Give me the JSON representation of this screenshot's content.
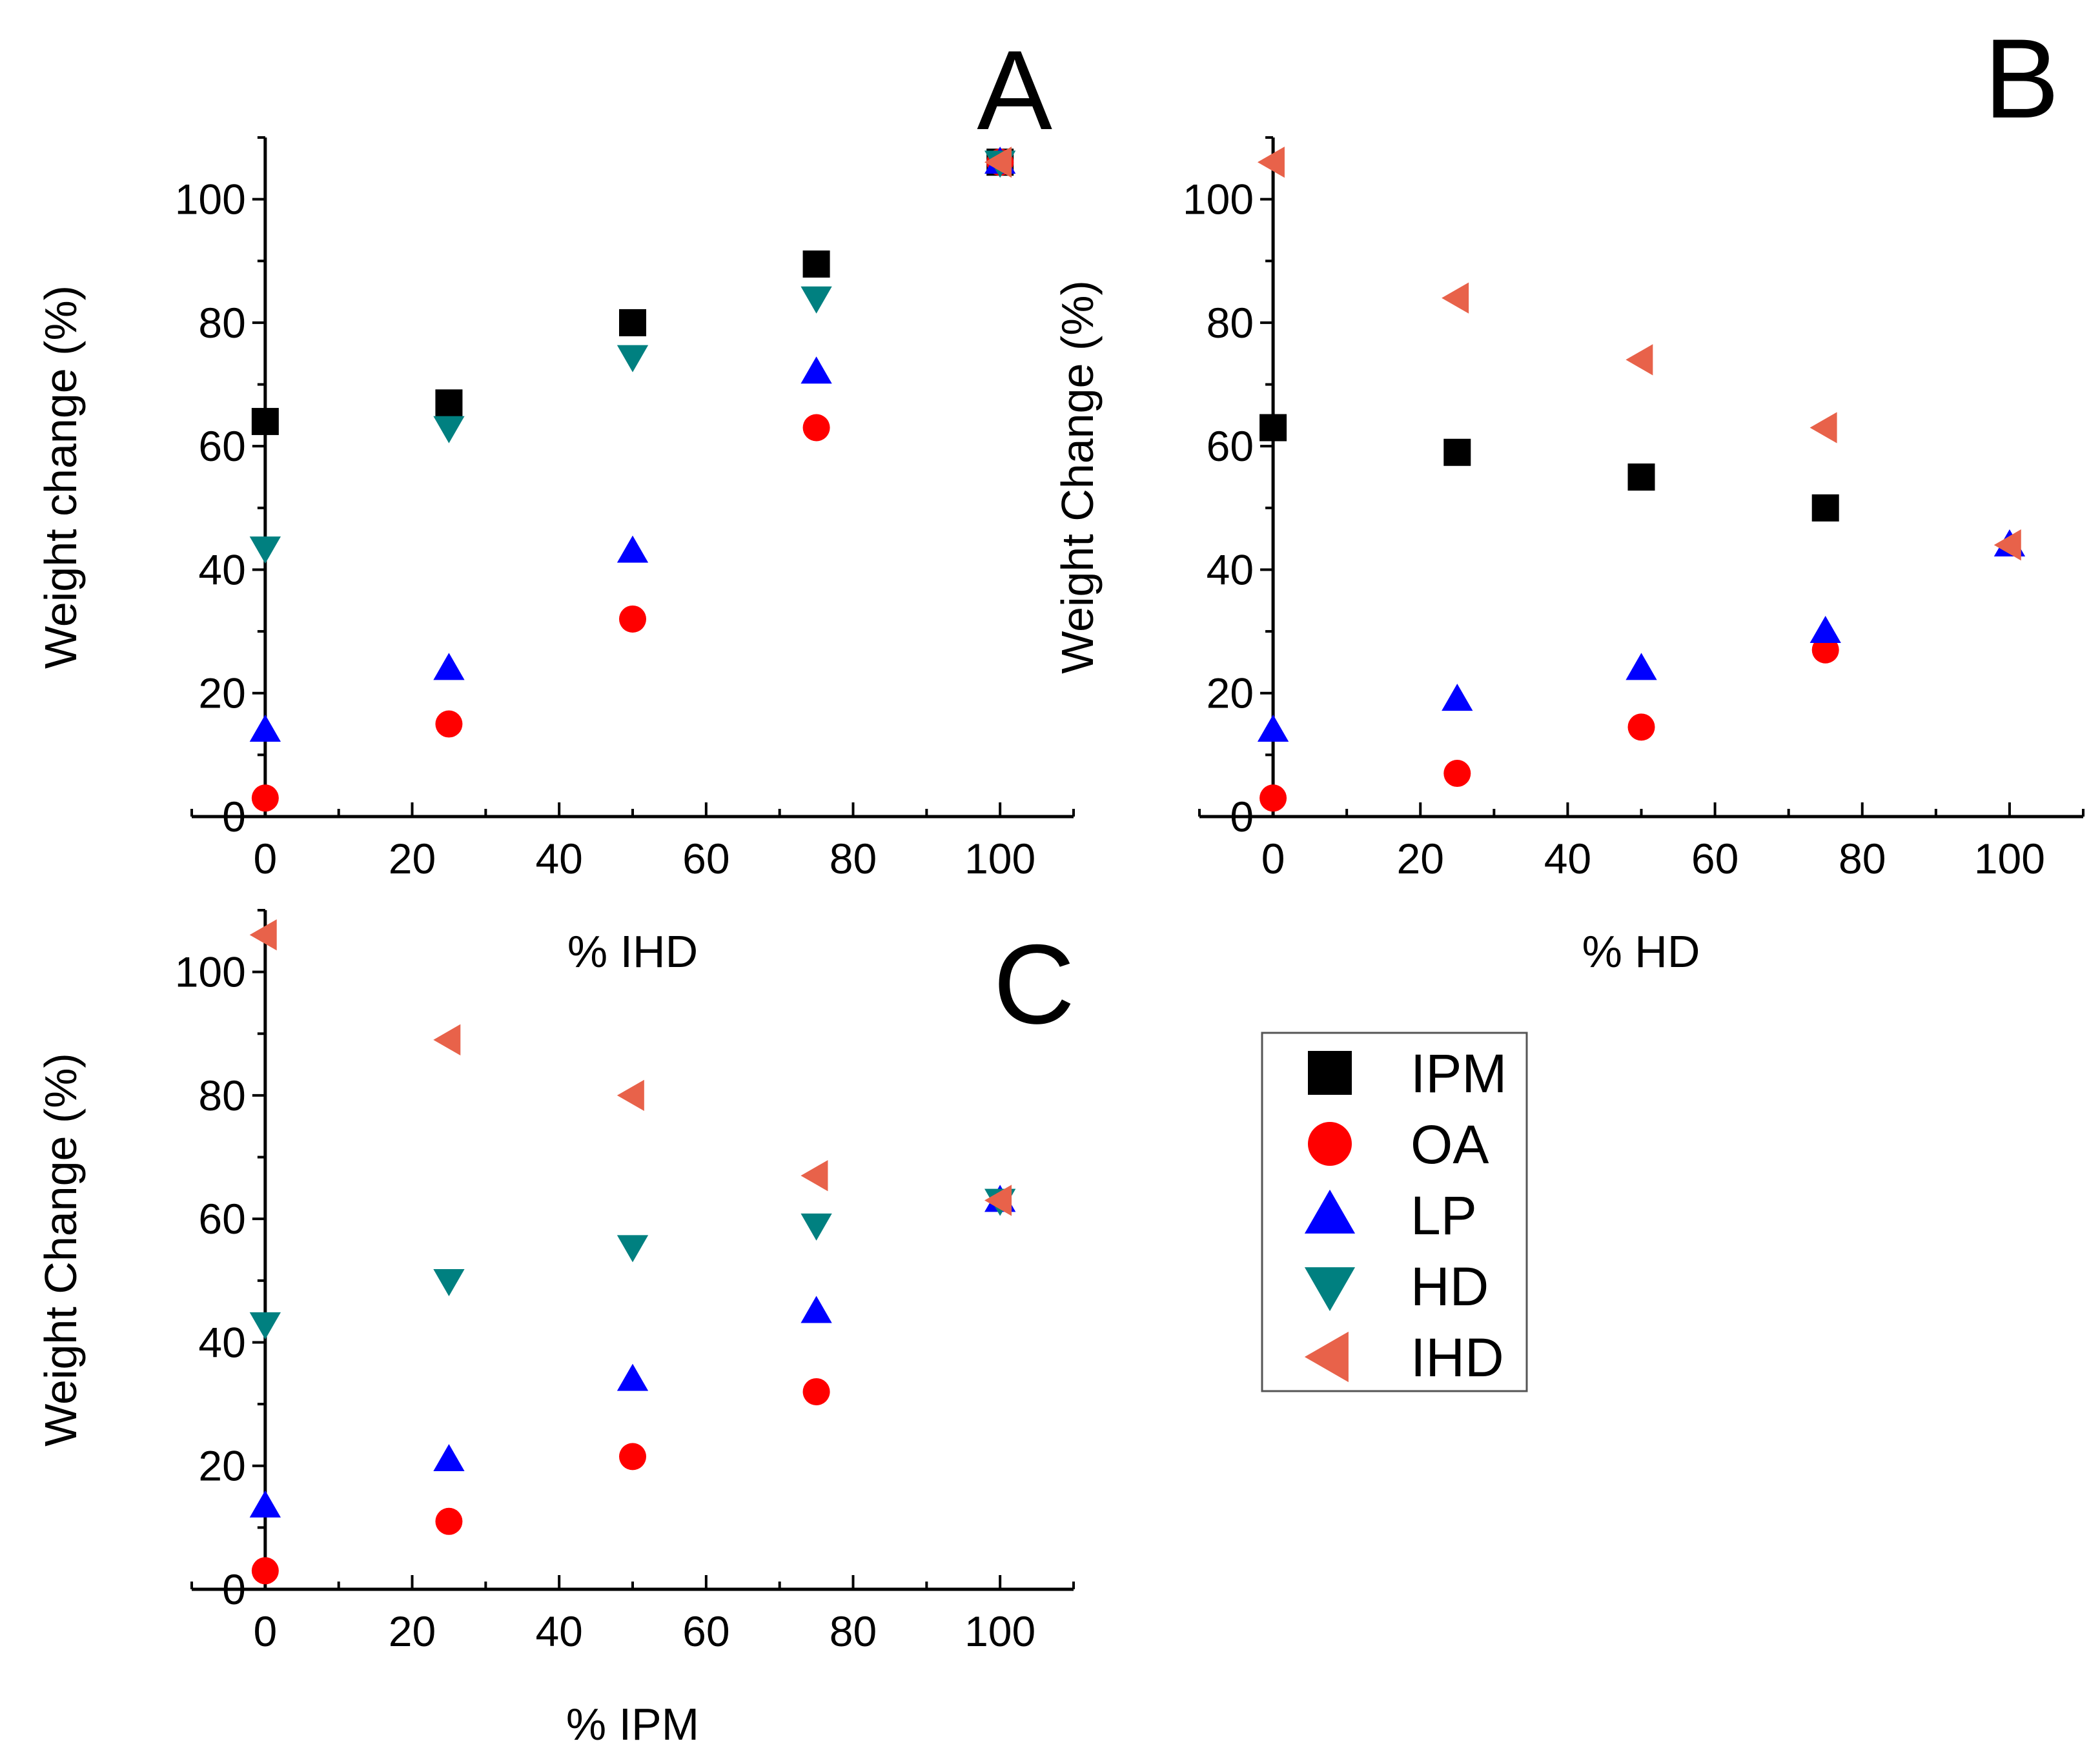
{
  "legend": {
    "position": "right of panel C, below panel B",
    "items": [
      {
        "label": "IPM",
        "marker": "square",
        "color": "#000000"
      },
      {
        "label": "OA",
        "marker": "circle",
        "color": "#ff0000"
      },
      {
        "label": "LP",
        "marker": "triangle-up",
        "color": "#0000ff"
      },
      {
        "label": "HD",
        "marker": "triangle-down",
        "color": "#008080"
      },
      {
        "label": "IHD",
        "marker": "triangle-left",
        "color": "#e8624a"
      }
    ]
  },
  "chart_data": [
    {
      "type": "scatter",
      "panel_label": "A",
      "xlabel": "% IHD",
      "ylabel": "Weight change (%)",
      "xlim": [
        -10,
        110
      ],
      "ylim": [
        0,
        110
      ],
      "xticks": [
        "0",
        "20",
        "40",
        "60",
        "80",
        "100"
      ],
      "yticks": [
        "0",
        "20",
        "40",
        "60",
        "80",
        "100"
      ],
      "grid": false,
      "x": [
        0,
        25,
        50,
        75,
        100
      ],
      "series": [
        {
          "name": "IPM",
          "x": [
            0,
            25,
            50,
            75,
            100
          ],
          "y": [
            64,
            67,
            80,
            89.5,
            106
          ]
        },
        {
          "name": "OA",
          "x": [
            0,
            25,
            50,
            75,
            100
          ],
          "y": [
            3,
            15,
            32,
            63,
            106
          ]
        },
        {
          "name": "LP",
          "x": [
            0,
            25,
            50,
            75,
            100
          ],
          "y": [
            14,
            24,
            43,
            72,
            106
          ]
        },
        {
          "name": "HD",
          "x": [
            0,
            25,
            50,
            75,
            100
          ],
          "y": [
            43.5,
            63,
            74.5,
            84,
            106
          ]
        },
        {
          "name": "IHD",
          "x": [
            100
          ],
          "y": [
            106
          ]
        }
      ]
    },
    {
      "type": "scatter",
      "panel_label": "B",
      "xlabel": "% HD",
      "ylabel": "Weight Change (%)",
      "xlim": [
        -10,
        110
      ],
      "ylim": [
        0,
        110
      ],
      "xticks": [
        "0",
        "20",
        "40",
        "60",
        "80",
        "100"
      ],
      "yticks": [
        "0",
        "20",
        "40",
        "60",
        "80",
        "100"
      ],
      "grid": false,
      "x": [
        0,
        25,
        50,
        75,
        100
      ],
      "series": [
        {
          "name": "IPM",
          "x": [
            0,
            25,
            50,
            75
          ],
          "y": [
            63,
            59,
            55,
            50
          ]
        },
        {
          "name": "OA",
          "x": [
            0,
            25,
            50,
            75
          ],
          "y": [
            3,
            7,
            14.5,
            27
          ]
        },
        {
          "name": "LP",
          "x": [
            0,
            25,
            50,
            75,
            100
          ],
          "y": [
            14,
            19,
            24,
            30,
            44
          ]
        },
        {
          "name": "IHD",
          "x": [
            0,
            25,
            50,
            75,
            100
          ],
          "y": [
            106,
            84,
            74,
            63,
            44
          ]
        }
      ]
    },
    {
      "type": "scatter",
      "panel_label": "C",
      "xlabel": "% IPM",
      "ylabel": "Weight Change (%)",
      "xlim": [
        -10,
        110
      ],
      "ylim": [
        0,
        110
      ],
      "xticks": [
        "0",
        "20",
        "40",
        "60",
        "80",
        "100"
      ],
      "yticks": [
        "0",
        "20",
        "40",
        "60",
        "80",
        "100"
      ],
      "grid": false,
      "x": [
        0,
        25,
        50,
        75,
        100
      ],
      "series": [
        {
          "name": "OA",
          "x": [
            0,
            25,
            50,
            75
          ],
          "y": [
            3,
            11,
            21.5,
            32
          ]
        },
        {
          "name": "LP",
          "x": [
            0,
            25,
            50,
            75,
            100
          ],
          "y": [
            13.5,
            21,
            34,
            45,
            63
          ]
        },
        {
          "name": "HD",
          "x": [
            0,
            25,
            50,
            75,
            100
          ],
          "y": [
            43,
            50,
            55.5,
            59,
            63
          ]
        },
        {
          "name": "IHD",
          "x": [
            0,
            25,
            50,
            75,
            100
          ],
          "y": [
            106,
            89,
            80,
            67,
            63
          ]
        }
      ]
    }
  ]
}
